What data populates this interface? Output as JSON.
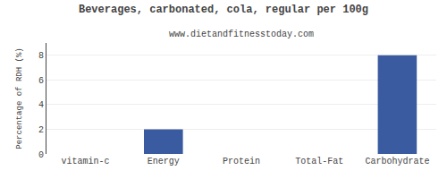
{
  "chart_data": {
    "type": "bar",
    "title": "Beverages, carbonated, cola, regular per 100g",
    "subtitle": "www.dietandfitnesstoday.com",
    "categories": [
      "vitamin-c",
      "Energy",
      "Protein",
      "Total-Fat",
      "Carbohydrate"
    ],
    "values": [
      0,
      2,
      0,
      0,
      8
    ],
    "color": "#3a5ba0",
    "ylabel": "Percentage of RDH (%)",
    "ylim": [
      0,
      9
    ],
    "yticks": [
      0,
      2,
      4,
      6,
      8
    ],
    "grid": true
  }
}
